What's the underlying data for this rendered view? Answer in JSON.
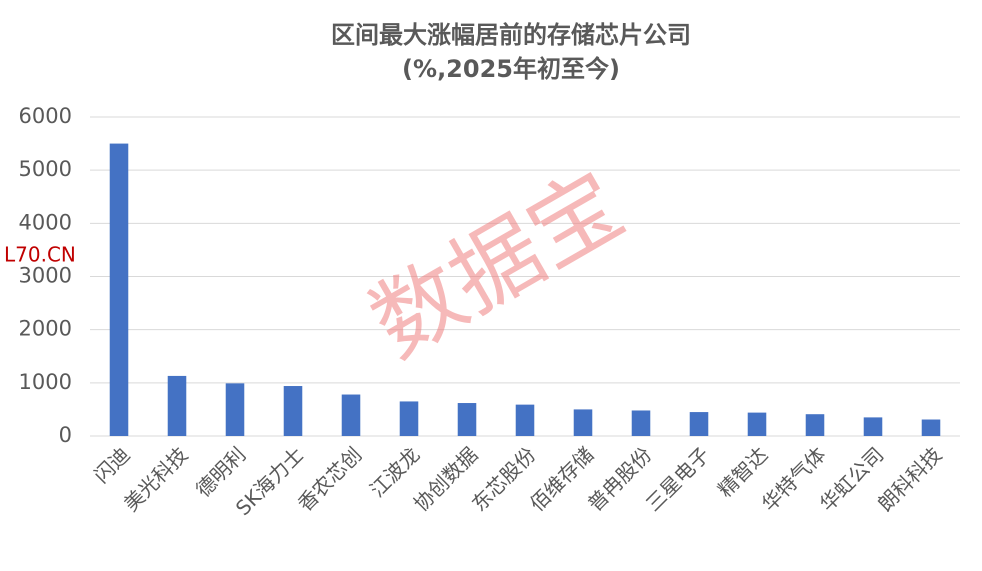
{
  "chart_data": {
    "type": "bar",
    "title": "区间最大涨幅居前的存储芯片公司",
    "subtitle": "(%,2025年初至今)",
    "categories": [
      "闪迪",
      "美光科技",
      "德明利",
      "SK海力士",
      "香农芯创",
      "江波龙",
      "协创数据",
      "东芯股份",
      "佰维存储",
      "普冉股份",
      "三星电子",
      "精智达",
      "华特气体",
      "华虹公司",
      "朗科科技"
    ],
    "values": [
      5500,
      1130,
      990,
      940,
      780,
      650,
      620,
      590,
      500,
      480,
      450,
      440,
      410,
      350,
      310
    ],
    "color": "#4472c4",
    "ylim": [
      0,
      6000
    ],
    "yticks": [
      0,
      1000,
      2000,
      3000,
      4000,
      5000,
      6000
    ],
    "grid": true
  },
  "watermark": "数据宝",
  "site_label": "L70.CN"
}
